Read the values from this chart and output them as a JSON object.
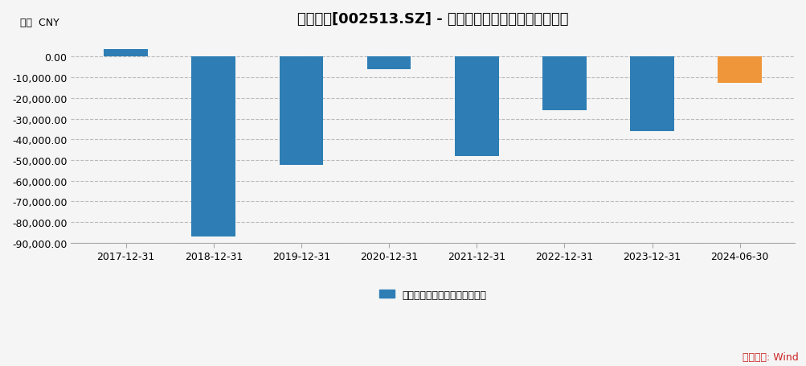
{
  "title": "蓝丰生化[002513.SZ] - 扣非后归属母公司股东的净利润",
  "ylabel_top": "万元  CNY",
  "categories": [
    "2017-12-31",
    "2018-12-31",
    "2019-12-31",
    "2020-12-31",
    "2021-12-31",
    "2022-12-31",
    "2023-12-31",
    "2024-06-30"
  ],
  "values": [
    3500,
    -87000,
    -52500,
    -6000,
    -48000,
    -26000,
    -36000,
    -12500
  ],
  "colors": [
    "#2e7eb5",
    "#2e7eb5",
    "#2e7eb5",
    "#2e7eb5",
    "#2e7eb5",
    "#2e7eb5",
    "#2e7eb5",
    "#f0963a"
  ],
  "ylim": [
    -90000,
    10000
  ],
  "yticks": [
    0,
    -10000,
    -20000,
    -30000,
    -40000,
    -50000,
    -60000,
    -70000,
    -80000,
    -90000
  ],
  "legend_label": "扣非后归属母公司股东的净利润",
  "legend_color": "#2e7eb5",
  "source_text": "数据来源: Wind",
  "source_color": "#cc2222",
  "background_color": "#f5f5f5",
  "plot_bg_color": "#f5f5f5",
  "grid_color": "#bbbbbb",
  "bar_width": 0.5,
  "title_fontsize": 13,
  "tick_fontsize": 9,
  "legend_fontsize": 9
}
